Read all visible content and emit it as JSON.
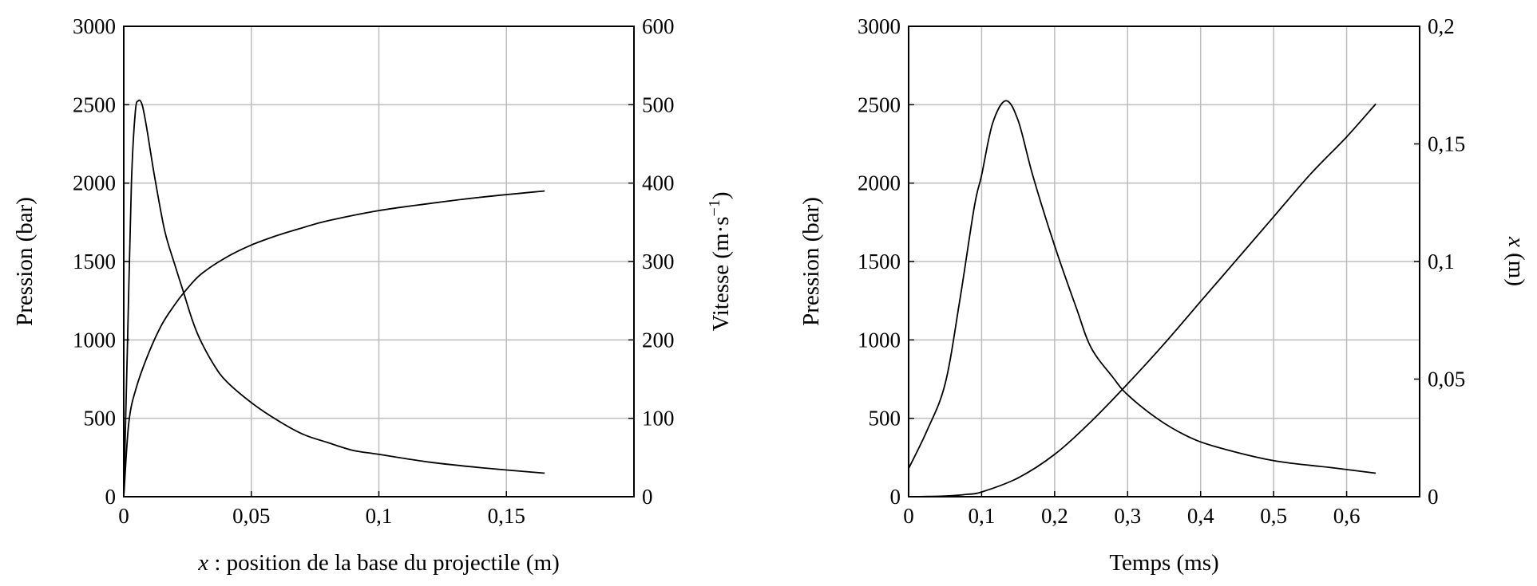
{
  "chart_data": [
    {
      "type": "line",
      "title": "",
      "xlabel_var": "x",
      "xlabel": " : position de la base du projectile (m)",
      "ylabel": "Pression (bar)",
      "y2label": "Vitesse (m·s",
      "y2label_sup": "−1",
      "y2label_end": ")",
      "xlim": [
        0,
        0.2
      ],
      "ylim": [
        0,
        3000
      ],
      "y2lim": [
        0,
        600
      ],
      "grid": true,
      "xticks": [
        0,
        0.05,
        0.1,
        0.15
      ],
      "xtick_labels": [
        "0",
        "0,05",
        "0,1",
        "0,15"
      ],
      "yticks": [
        0,
        500,
        1000,
        1500,
        2000,
        2500,
        3000
      ],
      "ytick_labels": [
        "0",
        "500",
        "1000",
        "1500",
        "2000",
        "2500",
        "3000"
      ],
      "y2ticks": [
        0,
        100,
        200,
        300,
        400,
        500,
        600
      ],
      "y2tick_labels": [
        "0",
        "100",
        "200",
        "300",
        "400",
        "500",
        "600"
      ],
      "series": [
        {
          "name": "Pression",
          "axis": "left",
          "x": [
            0,
            0.0015,
            0.003,
            0.0045,
            0.0057,
            0.0072,
            0.009,
            0.012,
            0.016,
            0.02,
            0.0235,
            0.027,
            0.03,
            0.035,
            0.04,
            0.05,
            0.06,
            0.07,
            0.08,
            0.09,
            0.1,
            0.12,
            0.14,
            0.165
          ],
          "y": [
            0,
            1000,
            2000,
            2450,
            2525,
            2500,
            2350,
            2050,
            1700,
            1480,
            1300,
            1120,
            1000,
            850,
            740,
            600,
            490,
            400,
            345,
            295,
            270,
            220,
            185,
            150
          ]
        },
        {
          "name": "Vitesse",
          "axis": "right",
          "x": [
            0,
            0.002,
            0.005,
            0.01,
            0.015,
            0.02,
            0.0235,
            0.03,
            0.04,
            0.05,
            0.06,
            0.07,
            0.08,
            0.1,
            0.12,
            0.14,
            0.165
          ],
          "y": [
            0,
            95,
            140,
            185,
            220,
            245,
            260,
            283,
            305,
            321,
            333,
            343,
            352,
            365,
            374,
            382,
            390
          ]
        }
      ]
    },
    {
      "type": "line",
      "title": "",
      "xlabel": "Temps (ms)",
      "ylabel": "Pression (bar)",
      "y2label_var": "x",
      "y2label": " (m)",
      "xlim": [
        0,
        0.7
      ],
      "ylim": [
        0,
        3000
      ],
      "y2lim": [
        0,
        0.2
      ],
      "grid": true,
      "xticks": [
        0,
        0.1,
        0.2,
        0.3,
        0.4,
        0.5,
        0.6
      ],
      "xtick_labels": [
        "0",
        "0,1",
        "0,2",
        "0,3",
        "0,4",
        "0,5",
        "0,6"
      ],
      "yticks": [
        0,
        500,
        1000,
        1500,
        2000,
        2500,
        3000
      ],
      "ytick_labels": [
        "0",
        "500",
        "1000",
        "1500",
        "2000",
        "2500",
        "3000"
      ],
      "y2ticks": [
        0,
        0.05,
        0.1,
        0.15,
        0.2
      ],
      "y2tick_labels": [
        "0",
        "0,05",
        "0,1",
        "0,15",
        "0,2"
      ],
      "series": [
        {
          "name": "Pression",
          "axis": "left",
          "x": [
            0,
            0.025,
            0.05,
            0.07,
            0.09,
            0.1,
            0.115,
            0.133,
            0.15,
            0.17,
            0.2,
            0.23,
            0.25,
            0.28,
            0.3,
            0.34,
            0.38,
            0.42,
            0.5,
            0.58,
            0.64
          ],
          "y": [
            180,
            420,
            720,
            1250,
            1850,
            2050,
            2380,
            2525,
            2400,
            2050,
            1600,
            1200,
            950,
            760,
            650,
            500,
            390,
            320,
            230,
            185,
            150
          ]
        },
        {
          "name": "x",
          "axis": "right",
          "x": [
            0,
            0.05,
            0.08,
            0.1,
            0.15,
            0.2,
            0.25,
            0.3,
            0.35,
            0.4,
            0.45,
            0.5,
            0.55,
            0.6,
            0.64
          ],
          "y": [
            0,
            0.0003,
            0.001,
            0.002,
            0.008,
            0.018,
            0.032,
            0.048,
            0.065,
            0.083,
            0.101,
            0.119,
            0.137,
            0.153,
            0.167
          ]
        }
      ]
    }
  ]
}
